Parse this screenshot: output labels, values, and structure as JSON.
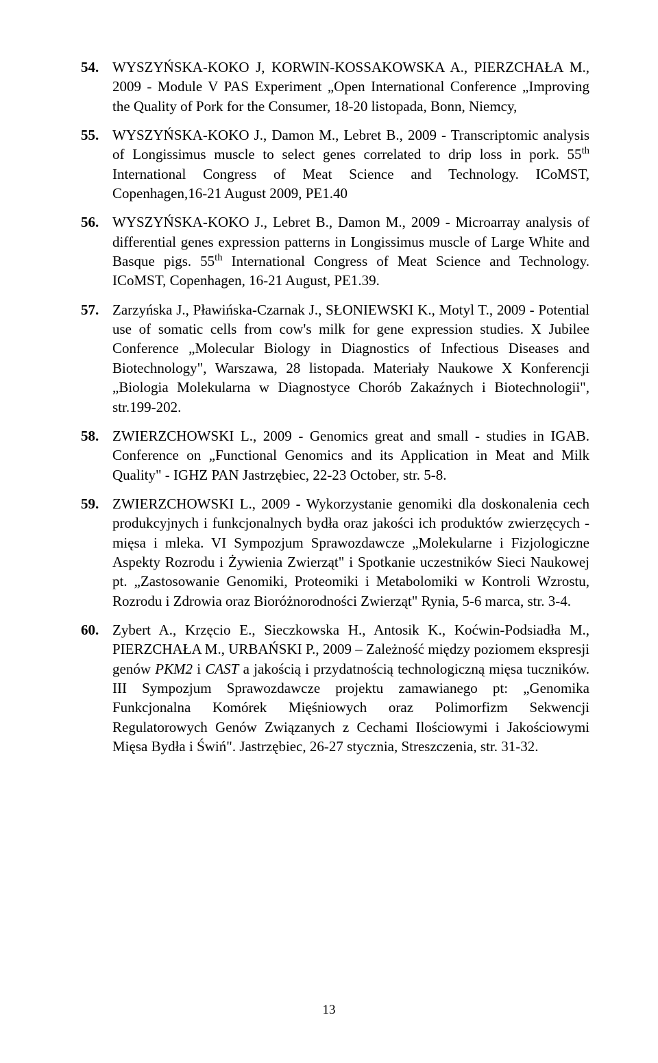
{
  "page_number": "13",
  "references": [
    {
      "num": "54.",
      "html": "WYSZYŃSKA-KOKO J, KORWIN-KOSSAKOWSKA A., PIERZCHAŁA M., 2009 - Module V PAS Experiment „Open International Conference „Improving the Quality of Pork for the Consumer, 18-20 listopada, Bonn, Niemcy,"
    },
    {
      "num": "55.",
      "html": "WYSZYŃSKA-KOKO J., Damon M., Lebret B., 2009 - Transcriptomic analysis of Longissimus muscle to select genes correlated to drip loss in pork. 55<sup>th</sup> International Congress of Meat Science and Technology. ICoMST, Copenhagen,16-21 August 2009, PE1.40"
    },
    {
      "num": "56.",
      "html": "WYSZYŃSKA-KOKO J., Lebret B., Damon M., 2009 - Microarray analysis of differential genes expression patterns in Longissimus muscle of Large White and Basque pigs. 55<sup>th</sup> International Congress of Meat Science and Technology. ICoMST, Copenhagen, 16-21 August, PE1.39."
    },
    {
      "num": "57.",
      "html": "Zarzyńska J., Pławińska-Czarnak J., SŁONIEWSKI K., Motyl T., 2009 - Potential use of somatic cells from cow's milk for gene expression studies. X Jubilee Conference „Molecular Biology in Diagnostics of Infectious Diseases and Biotechnology\", Warszawa, 28 listopada. Materiały Naukowe X Konferencji „Biologia Molekularna w Diagnostyce Chorób Zakaźnych i Biotechnologii\", str.199-202."
    },
    {
      "num": "58.",
      "html": "ZWIERZCHOWSKI L., 2009 - Genomics great and small - studies in IGAB. Conference on „Functional Genomics and its Application in Meat and Milk Quality\" - IGHZ PAN Jastrzębiec, 22-23 October, str. 5-8."
    },
    {
      "num": "59.",
      "html": "ZWIERZCHOWSKI L., 2009 - Wykorzystanie genomiki dla doskonalenia cech produkcyjnych i funkcjonalnych bydła oraz jakości ich produktów zwierzęcych - mięsa i mleka. VI Sympozjum Sprawozdawcze „Molekularne i Fizjologiczne Aspekty Rozrodu i Żywienia Zwierząt\" i Spotkanie uczestników Sieci Naukowej pt. „Zastosowanie Genomiki, Proteomiki i Metabolomiki w Kontroli Wzrostu, Rozrodu i Zdrowia oraz Bioróżnorodności Zwierząt\" Rynia, 5-6 marca, str. 3-4."
    },
    {
      "num": "60.",
      "html": "Zybert A., Krzęcio E., Sieczkowska H., Antosik K., Koćwin-Podsiadła M., PIERZCHAŁA M., URBAŃSKI P., 2009 – Zależność między poziomem ekspresji genów <i>PKM2</i> i <i>CAST</i> a jakością i przydatnością technologiczną mięsa tuczników. III Sympozjum Sprawozdawcze projektu zamawianego pt: „Genomika Funkcjonalna Komórek Mięśniowych oraz Polimorfizm Sekwencji Regulatorowych Genów Związanych z Cechami Ilościowymi i Jakościowymi Mięsa Bydła i Świń\". Jastrzębiec, 26-27 stycznia, Streszczenia, str. 31-32."
    }
  ]
}
